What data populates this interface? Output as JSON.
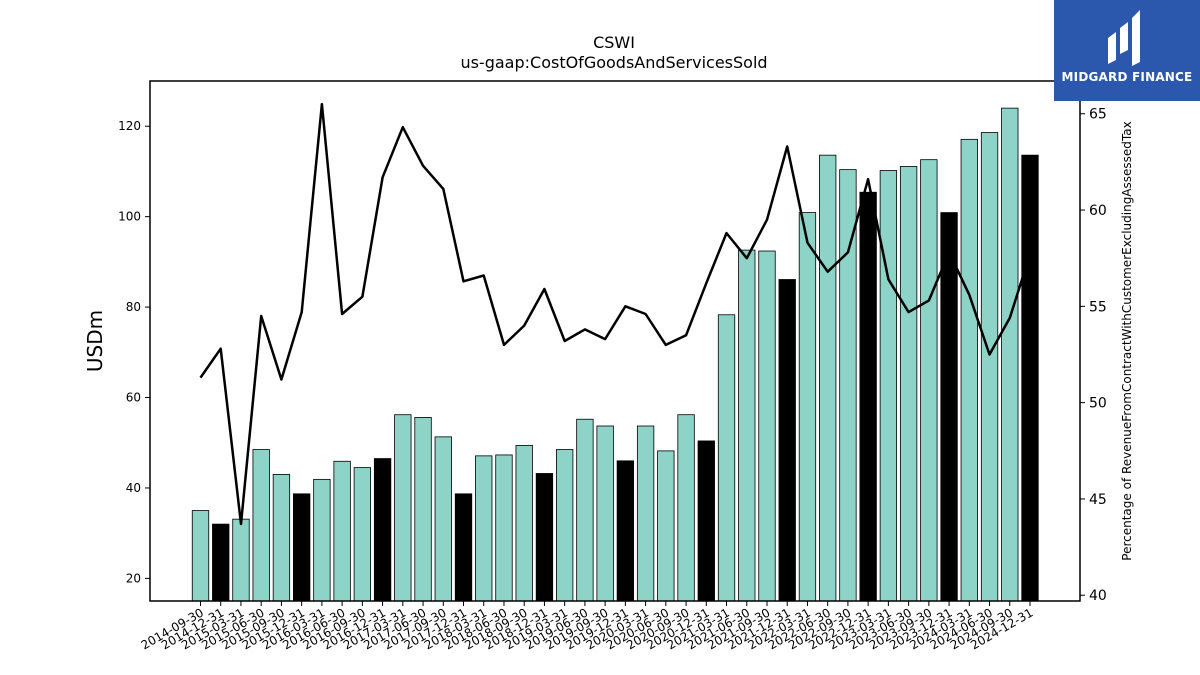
{
  "header": {
    "title": "CSWI",
    "subtitle": "us-gaap:CostOfGoodsAndServicesSold"
  },
  "brand": {
    "name": "MIDGARD FINANCE",
    "color": "#2b58ad"
  },
  "colors": {
    "quarter_bar": "#8dd3c7",
    "year_end_bar": "#000000",
    "line": "#000000"
  },
  "chart_data": {
    "type": "bar",
    "categories": [
      "2014-09-30",
      "2014-12-31",
      "2015-03-31",
      "2015-06-30",
      "2015-09-30",
      "2015-12-31",
      "2016-03-31",
      "2016-06-30",
      "2016-09-30",
      "2016-12-31",
      "2017-03-31",
      "2017-06-30",
      "2017-09-30",
      "2017-12-31",
      "2018-03-31",
      "2018-06-30",
      "2018-09-30",
      "2018-12-31",
      "2019-03-31",
      "2019-06-30",
      "2019-09-30",
      "2019-12-31",
      "2020-03-31",
      "2020-06-30",
      "2020-09-30",
      "2020-12-31",
      "2021-03-31",
      "2021-06-30",
      "2021-09-30",
      "2021-12-31",
      "2022-03-31",
      "2022-06-30",
      "2022-09-30",
      "2022-12-31",
      "2023-03-31",
      "2023-06-30",
      "2023-09-30",
      "2023-12-31",
      "2024-03-31",
      "2024-06-30",
      "2024-09-30",
      "2024-12-31"
    ],
    "series": [
      {
        "axis": "left",
        "kind": "bar",
        "values": [
          35.0,
          32.0,
          33.1,
          48.5,
          43.0,
          38.7,
          41.9,
          45.9,
          44.5,
          46.5,
          56.2,
          55.6,
          51.3,
          38.7,
          47.1,
          47.3,
          49.4,
          43.2,
          48.5,
          55.2,
          53.7,
          46.0,
          53.7,
          48.2,
          56.2,
          50.4,
          78.3,
          92.6,
          92.4,
          86.1,
          100.9,
          113.6,
          110.4,
          105.4,
          110.2,
          111.1,
          112.6,
          100.9,
          117.1,
          118.6,
          124.0,
          113.6
        ]
      },
      {
        "axis": "right",
        "kind": "line",
        "values": [
          51.3,
          52.8,
          43.7,
          54.5,
          51.2,
          54.7,
          65.5,
          54.6,
          55.5,
          61.7,
          64.3,
          62.3,
          61.1,
          56.3,
          56.6,
          53.0,
          54.0,
          55.9,
          53.2,
          53.8,
          53.3,
          55.0,
          54.6,
          53.0,
          53.5,
          56.2,
          58.8,
          57.5,
          59.5,
          63.3,
          58.3,
          56.8,
          57.8,
          61.6,
          56.4,
          54.7,
          55.3,
          57.8,
          55.6,
          52.5,
          54.4,
          57.7
        ]
      }
    ],
    "year_end_marked": true,
    "ylabel": "USDm",
    "ylabel_right": "Percentage of RevenueFromContractWithCustomerExcludingAssessedTax",
    "ylim": [
      15,
      130
    ],
    "ylim_right": [
      39.7,
      66.7
    ],
    "yticks": [
      20,
      40,
      60,
      80,
      100,
      120
    ],
    "yticks_right": [
      40,
      45,
      50,
      55,
      60,
      65
    ],
    "grid": false,
    "legend": "none"
  }
}
